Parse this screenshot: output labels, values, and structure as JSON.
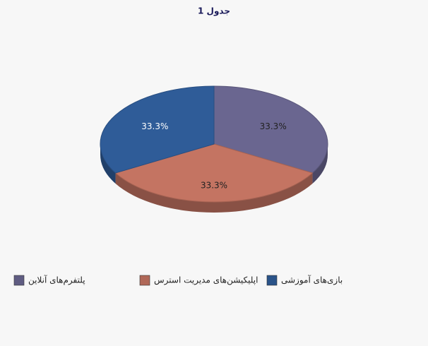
{
  "chart_data": {
    "type": "pie3d",
    "title": "جدول 1",
    "categories": [
      "پلتفرم‌های آنلاین",
      "اپلیکیشن‌های مدیریت استرس",
      "بازی‌های آموزشی"
    ],
    "values": [
      33.3,
      33.3,
      33.3
    ],
    "value_labels": [
      "33.3%",
      "33.3%",
      "33.3%"
    ],
    "colors": [
      "#6a6690",
      "#c47462",
      "#2f5c98"
    ]
  }
}
